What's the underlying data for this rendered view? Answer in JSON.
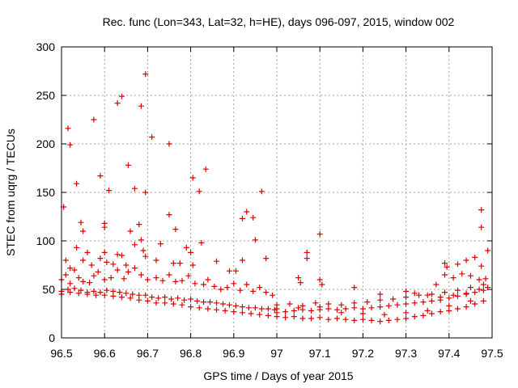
{
  "chart_data": {
    "type": "scatter",
    "title": "Rec. func (Lon=343, Lat=32, h=HE), days 096-097, 2015, window 002",
    "xlabel": "GPS time / Days of year 2015",
    "ylabel": "STEC from uqrg / TECUs",
    "xlim": [
      96.5,
      97.5
    ],
    "ylim": [
      0,
      300
    ],
    "grid": true,
    "marker": "plus",
    "color": "#dd0000",
    "x_ticks": [
      "96.5",
      "96.6",
      "96.7",
      "96.8",
      "96.9",
      "97",
      "97.1",
      "97.2",
      "97.3",
      "97.4",
      "97.5"
    ],
    "y_ticks": [
      "0",
      "50",
      "100",
      "150",
      "200",
      "250",
      "300"
    ],
    "points": [
      [
        96.505,
        135
      ],
      [
        96.515,
        216
      ],
      [
        96.52,
        199
      ],
      [
        96.535,
        159
      ],
      [
        96.545,
        119
      ],
      [
        96.55,
        110
      ],
      [
        96.575,
        225
      ],
      [
        96.59,
        167
      ],
      [
        96.6,
        118
      ],
      [
        96.6,
        114
      ],
      [
        96.61,
        152
      ],
      [
        96.63,
        242
      ],
      [
        96.64,
        249
      ],
      [
        96.655,
        178
      ],
      [
        96.67,
        154
      ],
      [
        96.685,
        239
      ],
      [
        96.695,
        272
      ],
      [
        96.695,
        150
      ],
      [
        96.71,
        207
      ],
      [
        96.75,
        200
      ],
      [
        96.75,
        127
      ],
      [
        96.765,
        112
      ],
      [
        96.805,
        165
      ],
      [
        96.82,
        151
      ],
      [
        96.835,
        174
      ],
      [
        96.93,
        130
      ],
      [
        96.945,
        124
      ],
      [
        96.965,
        151
      ],
      [
        96.92,
        123
      ],
      [
        96.95,
        101
      ],
      [
        97.1,
        107
      ],
      [
        97.475,
        132
      ],
      [
        97.475,
        114
      ],
      [
        96.51,
        80
      ],
      [
        96.52,
        72
      ],
      [
        96.535,
        93
      ],
      [
        96.55,
        80
      ],
      [
        96.56,
        88
      ],
      [
        96.57,
        75
      ],
      [
        96.59,
        82
      ],
      [
        96.6,
        88
      ],
      [
        96.605,
        78
      ],
      [
        96.62,
        76
      ],
      [
        96.63,
        86
      ],
      [
        96.64,
        85
      ],
      [
        96.65,
        75
      ],
      [
        96.66,
        110
      ],
      [
        96.67,
        96
      ],
      [
        96.68,
        117
      ],
      [
        96.685,
        101
      ],
      [
        96.69,
        90
      ],
      [
        96.695,
        84
      ],
      [
        96.72,
        80
      ],
      [
        96.73,
        97
      ],
      [
        96.76,
        77
      ],
      [
        96.775,
        77
      ],
      [
        96.79,
        93
      ],
      [
        96.8,
        88
      ],
      [
        96.805,
        75
      ],
      [
        96.825,
        98
      ],
      [
        96.86,
        79
      ],
      [
        96.89,
        69
      ],
      [
        96.905,
        69
      ],
      [
        96.92,
        80
      ],
      [
        96.975,
        82
      ],
      [
        97.07,
        88
      ],
      [
        97.07,
        82
      ],
      [
        97.1,
        60
      ],
      [
        97.39,
        77
      ],
      [
        97.395,
        73
      ],
      [
        97.42,
        76
      ],
      [
        97.44,
        80
      ],
      [
        97.46,
        83
      ],
      [
        97.475,
        74
      ],
      [
        97.49,
        90
      ],
      [
        96.5,
        60
      ],
      [
        96.51,
        65
      ],
      [
        96.52,
        56
      ],
      [
        96.53,
        70
      ],
      [
        96.54,
        62
      ],
      [
        96.55,
        58
      ],
      [
        96.565,
        57
      ],
      [
        96.575,
        64
      ],
      [
        96.585,
        68
      ],
      [
        96.6,
        60
      ],
      [
        96.615,
        62
      ],
      [
        96.63,
        70
      ],
      [
        96.645,
        61
      ],
      [
        96.655,
        68
      ],
      [
        96.67,
        72
      ],
      [
        96.685,
        65
      ],
      [
        96.7,
        60
      ],
      [
        96.72,
        62
      ],
      [
        96.735,
        59
      ],
      [
        96.75,
        65
      ],
      [
        96.765,
        58
      ],
      [
        96.78,
        59
      ],
      [
        96.795,
        64
      ],
      [
        96.81,
        56
      ],
      [
        96.83,
        55
      ],
      [
        96.84,
        60
      ],
      [
        96.855,
        53
      ],
      [
        96.87,
        50
      ],
      [
        96.885,
        52
      ],
      [
        96.9,
        56
      ],
      [
        96.915,
        49
      ],
      [
        96.93,
        55
      ],
      [
        96.945,
        48
      ],
      [
        96.96,
        52
      ],
      [
        96.975,
        47
      ],
      [
        96.99,
        44
      ],
      [
        97.05,
        62
      ],
      [
        97.055,
        57
      ],
      [
        97.105,
        55
      ],
      [
        97.18,
        52
      ],
      [
        97.24,
        45
      ],
      [
        97.37,
        55
      ],
      [
        97.39,
        65
      ],
      [
        97.41,
        62
      ],
      [
        97.43,
        66
      ],
      [
        97.45,
        64
      ],
      [
        97.47,
        60
      ],
      [
        97.485,
        61
      ],
      [
        96.5,
        48
      ],
      [
        96.515,
        50
      ],
      [
        96.53,
        51
      ],
      [
        96.545,
        49
      ],
      [
        96.56,
        47
      ],
      [
        96.575,
        48
      ],
      [
        96.59,
        47
      ],
      [
        96.605,
        49
      ],
      [
        96.62,
        48
      ],
      [
        96.635,
        47
      ],
      [
        96.65,
        46
      ],
      [
        96.665,
        45
      ],
      [
        96.68,
        44
      ],
      [
        96.695,
        44
      ],
      [
        96.71,
        42
      ],
      [
        96.725,
        41
      ],
      [
        96.74,
        42
      ],
      [
        96.755,
        40
      ],
      [
        96.77,
        41
      ],
      [
        96.785,
        39
      ],
      [
        96.8,
        40
      ],
      [
        96.815,
        38
      ],
      [
        96.83,
        37
      ],
      [
        96.845,
        37
      ],
      [
        96.86,
        36
      ],
      [
        96.875,
        35
      ],
      [
        96.89,
        34
      ],
      [
        96.905,
        33
      ],
      [
        96.92,
        32
      ],
      [
        96.935,
        31
      ],
      [
        96.95,
        31
      ],
      [
        96.965,
        30
      ],
      [
        96.98,
        30
      ],
      [
        96.995,
        29
      ],
      [
        96.5,
        45
      ],
      [
        96.52,
        47
      ],
      [
        96.54,
        46
      ],
      [
        96.56,
        45
      ],
      [
        96.58,
        44
      ],
      [
        96.6,
        44
      ],
      [
        96.62,
        43
      ],
      [
        96.64,
        42
      ],
      [
        96.66,
        41
      ],
      [
        96.68,
        39
      ],
      [
        96.7,
        38
      ],
      [
        96.72,
        36
      ],
      [
        96.74,
        36
      ],
      [
        96.76,
        35
      ],
      [
        96.78,
        34
      ],
      [
        96.8,
        32
      ],
      [
        96.82,
        31
      ],
      [
        96.84,
        30
      ],
      [
        96.86,
        29
      ],
      [
        96.88,
        28
      ],
      [
        96.9,
        27
      ],
      [
        96.92,
        26
      ],
      [
        96.94,
        25
      ],
      [
        96.96,
        24
      ],
      [
        96.98,
        23
      ],
      [
        97.0,
        26
      ],
      [
        97.02,
        27
      ],
      [
        97.04,
        28
      ],
      [
        97.06,
        29
      ],
      [
        97.08,
        28
      ],
      [
        97.1,
        29
      ],
      [
        97.12,
        30
      ],
      [
        97.14,
        29
      ],
      [
        97.16,
        30
      ],
      [
        97.18,
        31
      ],
      [
        97.2,
        30
      ],
      [
        97.22,
        31
      ],
      [
        97.24,
        32
      ],
      [
        97.26,
        33
      ],
      [
        97.28,
        34
      ],
      [
        97.3,
        35
      ],
      [
        97.32,
        36
      ],
      [
        97.34,
        37
      ],
      [
        97.36,
        38
      ],
      [
        97.38,
        39
      ],
      [
        97.4,
        41
      ],
      [
        97.42,
        43
      ],
      [
        97.44,
        45
      ],
      [
        97.46,
        47
      ],
      [
        97.48,
        49
      ],
      [
        97.49,
        52
      ],
      [
        97.0,
        22
      ],
      [
        97.02,
        21
      ],
      [
        97.04,
        22
      ],
      [
        97.06,
        20
      ],
      [
        97.08,
        20
      ],
      [
        97.1,
        21
      ],
      [
        97.12,
        19
      ],
      [
        97.14,
        20
      ],
      [
        97.16,
        19
      ],
      [
        97.18,
        18
      ],
      [
        97.2,
        19
      ],
      [
        97.22,
        18
      ],
      [
        97.24,
        17
      ],
      [
        97.26,
        18
      ],
      [
        97.28,
        19
      ],
      [
        97.3,
        20
      ],
      [
        97.32,
        22
      ],
      [
        97.34,
        23
      ],
      [
        97.36,
        25
      ],
      [
        97.38,
        27
      ],
      [
        97.4,
        28
      ],
      [
        97.42,
        30
      ],
      [
        97.44,
        32
      ],
      [
        97.46,
        35
      ],
      [
        97.48,
        38
      ],
      [
        97.0,
        34
      ],
      [
        97.03,
        35
      ],
      [
        97.06,
        33
      ],
      [
        97.09,
        36
      ],
      [
        97.12,
        35
      ],
      [
        97.15,
        34
      ],
      [
        97.18,
        36
      ],
      [
        97.21,
        37
      ],
      [
        97.24,
        39
      ],
      [
        97.27,
        40
      ],
      [
        97.3,
        42
      ],
      [
        97.33,
        44
      ],
      [
        97.36,
        45
      ],
      [
        97.39,
        47
      ],
      [
        97.42,
        49
      ],
      [
        97.45,
        52
      ],
      [
        97.48,
        55
      ],
      [
        97.3,
        48
      ],
      [
        97.32,
        46
      ],
      [
        97.35,
        44
      ],
      [
        97.38,
        42
      ],
      [
        97.41,
        44
      ],
      [
        97.44,
        46
      ],
      [
        97.47,
        50
      ],
      [
        97.0,
        30
      ],
      [
        97.05,
        31
      ],
      [
        97.1,
        32
      ],
      [
        97.15,
        26
      ],
      [
        97.2,
        25
      ],
      [
        97.25,
        24
      ],
      [
        97.3,
        26
      ],
      [
        97.35,
        28
      ],
      [
        97.4,
        33
      ],
      [
        97.45,
        38
      ]
    ]
  }
}
